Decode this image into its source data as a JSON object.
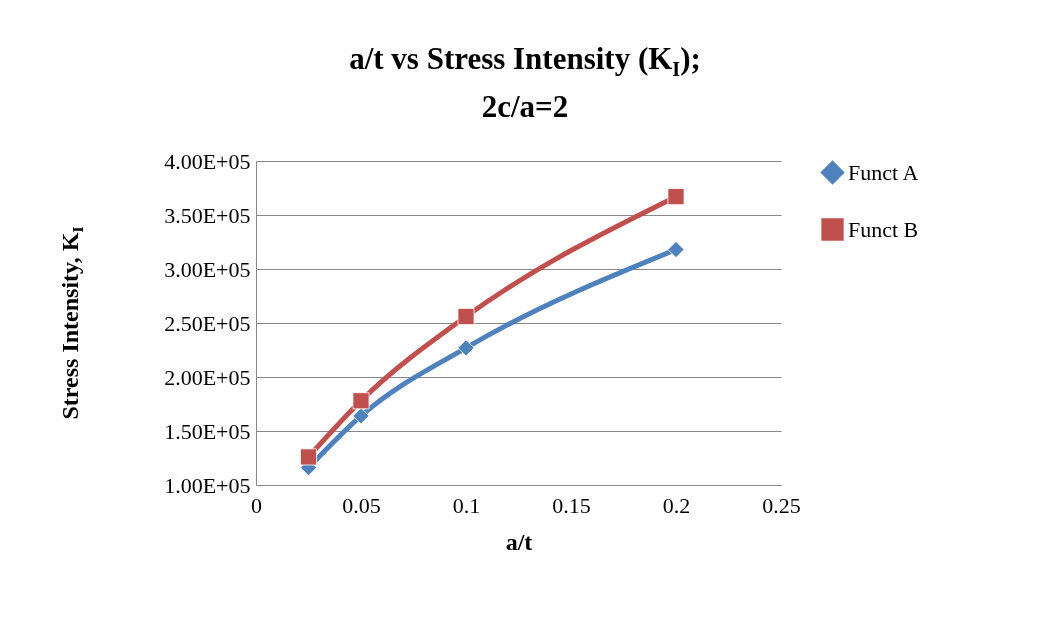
{
  "chart_data": {
    "type": "line",
    "title": "a/t vs Stress Intensity (K$_{I}$);\n2c/a=2",
    "xlabel": "a/t",
    "ylabel": "Stress Intensity, K$_{I}$",
    "x": [
      0.025,
      0.05,
      0.1,
      0.2
    ],
    "series": [
      {
        "name": "Funct A",
        "color": "#4f81bd",
        "marker": "diamond",
        "values": [
          116000,
          164000,
          227000,
          318000
        ]
      },
      {
        "name": "Funct B",
        "color": "#c0504d",
        "marker": "square",
        "values": [
          126000,
          178000,
          256000,
          367000
        ]
      }
    ],
    "xlim": [
      0,
      0.25
    ],
    "xticks": [
      0,
      0.05,
      0.1,
      0.15,
      0.2,
      0.25
    ],
    "ylim": [
      100000,
      400000
    ],
    "yticks": [
      {
        "value": 100000,
        "label": "1.00E+05"
      },
      {
        "value": 150000,
        "label": "1.50E+05"
      },
      {
        "value": 200000,
        "label": "2.00E+05"
      },
      {
        "value": 250000,
        "label": "2.50E+05"
      },
      {
        "value": 300000,
        "label": "3.00E+05"
      },
      {
        "value": 350000,
        "label": "3.50E+05"
      },
      {
        "value": 400000,
        "label": "4.00E+05"
      }
    ],
    "grid": "y",
    "legend": "right",
    "line_style": "solid"
  }
}
